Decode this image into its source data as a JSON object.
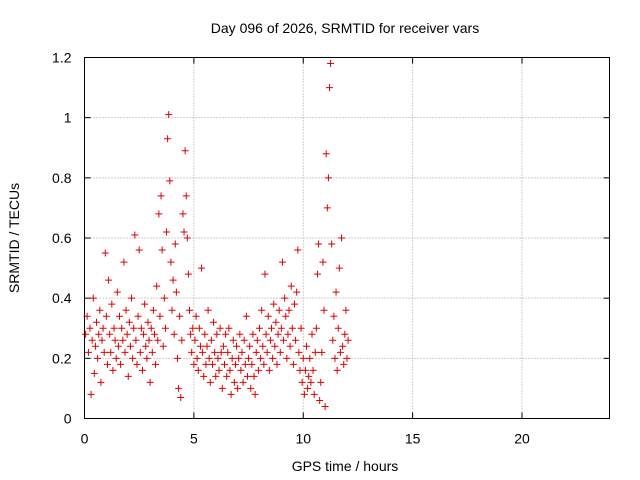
{
  "chart_data": {
    "type": "scatter",
    "title": "Day 096 of 2026, SRMTID for receiver vars",
    "xlabel": "GPS time / hours",
    "ylabel": "SRMTID / TECUs",
    "xlim": [
      0,
      24
    ],
    "ylim": [
      0,
      1.2
    ],
    "xticks": [
      0,
      5,
      10,
      15,
      20
    ],
    "yticks": [
      0,
      0.2,
      0.4,
      0.6,
      0.8,
      1,
      1.2
    ],
    "xtick_labels": [
      "0",
      "5",
      "10",
      "15",
      "20"
    ],
    "ytick_labels": [
      "0",
      "0.2",
      "0.4",
      "0.6",
      "0.8",
      "1",
      "1.2"
    ],
    "grid": true,
    "marker": "plus",
    "color": "#e00000",
    "series": [
      {
        "name": "SRMTID",
        "points": [
          [
            0.05,
            0.28
          ],
          [
            0.12,
            0.34
          ],
          [
            0.18,
            0.22
          ],
          [
            0.25,
            0.3
          ],
          [
            0.3,
            0.08
          ],
          [
            0.35,
            0.26
          ],
          [
            0.4,
            0.4
          ],
          [
            0.45,
            0.15
          ],
          [
            0.5,
            0.24
          ],
          [
            0.55,
            0.32
          ],
          [
            0.6,
            0.2
          ],
          [
            0.65,
            0.28
          ],
          [
            0.7,
            0.36
          ],
          [
            0.75,
            0.12
          ],
          [
            0.8,
            0.26
          ],
          [
            0.85,
            0.3
          ],
          [
            0.9,
            0.22
          ],
          [
            0.95,
            0.55
          ],
          [
            1.0,
            0.34
          ],
          [
            1.05,
            0.18
          ],
          [
            1.1,
            0.46
          ],
          [
            1.15,
            0.28
          ],
          [
            1.2,
            0.22
          ],
          [
            1.25,
            0.38
          ],
          [
            1.3,
            0.16
          ],
          [
            1.35,
            0.3
          ],
          [
            1.4,
            0.26
          ],
          [
            1.45,
            0.2
          ],
          [
            1.5,
            0.42
          ],
          [
            1.55,
            0.24
          ],
          [
            1.6,
            0.34
          ],
          [
            1.65,
            0.18
          ],
          [
            1.7,
            0.3
          ],
          [
            1.75,
            0.26
          ],
          [
            1.8,
            0.52
          ],
          [
            1.85,
            0.22
          ],
          [
            1.9,
            0.36
          ],
          [
            1.95,
            0.28
          ],
          [
            2.0,
            0.14
          ],
          [
            2.05,
            0.32
          ],
          [
            2.1,
            0.24
          ],
          [
            2.15,
            0.4
          ],
          [
            2.2,
            0.2
          ],
          [
            2.25,
            0.3
          ],
          [
            2.3,
            0.61
          ],
          [
            2.35,
            0.26
          ],
          [
            2.4,
            0.18
          ],
          [
            2.45,
            0.34
          ],
          [
            2.5,
            0.56
          ],
          [
            2.55,
            0.22
          ],
          [
            2.6,
            0.3
          ],
          [
            2.65,
            0.16
          ],
          [
            2.7,
            0.28
          ],
          [
            2.75,
            0.38
          ],
          [
            2.8,
            0.24
          ],
          [
            2.85,
            0.2
          ],
          [
            2.9,
            0.32
          ],
          [
            2.95,
            0.26
          ],
          [
            3.0,
            0.12
          ],
          [
            3.05,
            0.3
          ],
          [
            3.1,
            0.22
          ],
          [
            3.15,
            0.36
          ],
          [
            3.2,
            0.28
          ],
          [
            3.25,
            0.18
          ],
          [
            3.3,
            0.44
          ],
          [
            3.35,
            0.26
          ],
          [
            3.4,
            0.68
          ],
          [
            3.45,
            0.34
          ],
          [
            3.5,
            0.74
          ],
          [
            3.55,
            0.56
          ],
          [
            3.6,
            0.24
          ],
          [
            3.65,
            0.4
          ],
          [
            3.7,
            0.3
          ],
          [
            3.75,
            0.62
          ],
          [
            3.8,
            0.93
          ],
          [
            3.85,
            1.01
          ],
          [
            3.9,
            0.79
          ],
          [
            3.95,
            0.52
          ],
          [
            4.0,
            0.36
          ],
          [
            4.05,
            0.46
          ],
          [
            4.1,
            0.28
          ],
          [
            4.15,
            0.58
          ],
          [
            4.2,
            0.42
          ],
          [
            4.25,
            0.2
          ],
          [
            4.3,
            0.1
          ],
          [
            4.35,
            0.34
          ],
          [
            4.4,
            0.07
          ],
          [
            4.45,
            0.26
          ],
          [
            4.5,
            0.68
          ],
          [
            4.55,
            0.62
          ],
          [
            4.6,
            0.89
          ],
          [
            4.65,
            0.74
          ],
          [
            4.7,
            0.6
          ],
          [
            4.75,
            0.48
          ],
          [
            4.8,
            0.36
          ],
          [
            4.85,
            0.28
          ],
          [
            4.9,
            0.22
          ],
          [
            4.95,
            0.3
          ],
          [
            5.0,
            0.18
          ],
          [
            5.05,
            0.26
          ],
          [
            5.1,
            0.34
          ],
          [
            5.15,
            0.2
          ],
          [
            5.2,
            0.16
          ],
          [
            5.25,
            0.3
          ],
          [
            5.3,
            0.24
          ],
          [
            5.35,
            0.5
          ],
          [
            5.4,
            0.22
          ],
          [
            5.45,
            0.14
          ],
          [
            5.5,
            0.28
          ],
          [
            5.55,
            0.18
          ],
          [
            5.6,
            0.24
          ],
          [
            5.65,
            0.36
          ],
          [
            5.7,
            0.2
          ],
          [
            5.75,
            0.12
          ],
          [
            5.8,
            0.26
          ],
          [
            5.85,
            0.18
          ],
          [
            5.9,
            0.32
          ],
          [
            5.95,
            0.22
          ],
          [
            6.0,
            0.14
          ],
          [
            6.05,
            0.28
          ],
          [
            6.1,
            0.2
          ],
          [
            6.15,
            0.16
          ],
          [
            6.2,
            0.3
          ],
          [
            6.25,
            0.22
          ],
          [
            6.3,
            0.1
          ],
          [
            6.35,
            0.24
          ],
          [
            6.4,
            0.18
          ],
          [
            6.45,
            0.28
          ],
          [
            6.5,
            0.14
          ],
          [
            6.55,
            0.22
          ],
          [
            6.6,
            0.3
          ],
          [
            6.65,
            0.16
          ],
          [
            6.7,
            0.08
          ],
          [
            6.75,
            0.2
          ],
          [
            6.8,
            0.26
          ],
          [
            6.85,
            0.12
          ],
          [
            6.9,
            0.18
          ],
          [
            6.95,
            0.24
          ],
          [
            7.0,
            0.1
          ],
          [
            7.05,
            0.2
          ],
          [
            7.1,
            0.28
          ],
          [
            7.15,
            0.16
          ],
          [
            7.2,
            0.22
          ],
          [
            7.25,
            0.12
          ],
          [
            7.3,
            0.26
          ],
          [
            7.35,
            0.18
          ],
          [
            7.4,
            0.34
          ],
          [
            7.45,
            0.14
          ],
          [
            7.5,
            0.2
          ],
          [
            7.55,
            0.24
          ],
          [
            7.6,
            0.1
          ],
          [
            7.65,
            0.18
          ],
          [
            7.7,
            0.28
          ],
          [
            7.75,
            0.14
          ],
          [
            7.8,
            0.08
          ],
          [
            7.85,
            0.22
          ],
          [
            7.9,
            0.26
          ],
          [
            7.95,
            0.16
          ],
          [
            8.0,
            0.3
          ],
          [
            8.05,
            0.2
          ],
          [
            8.1,
            0.36
          ],
          [
            8.15,
            0.24
          ],
          [
            8.2,
            0.18
          ],
          [
            8.25,
            0.48
          ],
          [
            8.3,
            0.28
          ],
          [
            8.35,
            0.22
          ],
          [
            8.4,
            0.34
          ],
          [
            8.45,
            0.16
          ],
          [
            8.5,
            0.26
          ],
          [
            8.55,
            0.3
          ],
          [
            8.6,
            0.2
          ],
          [
            8.65,
            0.38
          ],
          [
            8.7,
            0.24
          ],
          [
            8.75,
            0.32
          ],
          [
            8.8,
            0.18
          ],
          [
            8.85,
            0.28
          ],
          [
            8.9,
            0.36
          ],
          [
            8.95,
            0.22
          ],
          [
            9.0,
            0.3
          ],
          [
            9.05,
            0.52
          ],
          [
            9.1,
            0.26
          ],
          [
            9.15,
            0.4
          ],
          [
            9.2,
            0.34
          ],
          [
            9.25,
            0.2
          ],
          [
            9.3,
            0.28
          ],
          [
            9.35,
            0.36
          ],
          [
            9.4,
            0.24
          ],
          [
            9.45,
            0.44
          ],
          [
            9.5,
            0.3
          ],
          [
            9.55,
            0.18
          ],
          [
            9.6,
            0.38
          ],
          [
            9.65,
            0.26
          ],
          [
            9.7,
            0.42
          ],
          [
            9.75,
            0.56
          ],
          [
            9.8,
            0.22
          ],
          [
            9.85,
            0.16
          ],
          [
            9.9,
            0.3
          ],
          [
            9.95,
            0.12
          ],
          [
            10.0,
            0.2
          ],
          [
            10.05,
            0.08
          ],
          [
            10.1,
            0.16
          ],
          [
            10.15,
            0.24
          ],
          [
            10.2,
            0.1
          ],
          [
            10.25,
            0.14
          ],
          [
            10.3,
            0.2
          ],
          [
            10.35,
            0.12
          ],
          [
            10.4,
            0.28
          ],
          [
            10.45,
            0.16
          ],
          [
            10.5,
            0.08
          ],
          [
            10.55,
            0.22
          ],
          [
            10.6,
            0.3
          ],
          [
            10.65,
            0.48
          ],
          [
            10.7,
            0.58
          ],
          [
            10.75,
            0.06
          ],
          [
            10.8,
            0.12
          ],
          [
            10.85,
            0.22
          ],
          [
            10.9,
            0.52
          ],
          [
            10.95,
            0.36
          ],
          [
            11.0,
            0.04
          ],
          [
            11.05,
            0.88
          ],
          [
            11.1,
            0.7
          ],
          [
            11.15,
            0.8
          ],
          [
            11.2,
            1.1
          ],
          [
            11.25,
            1.18
          ],
          [
            11.3,
            0.58
          ],
          [
            11.35,
            0.26
          ],
          [
            11.4,
            0.34
          ],
          [
            11.45,
            0.2
          ],
          [
            11.5,
            0.42
          ],
          [
            11.55,
            0.16
          ],
          [
            11.6,
            0.3
          ],
          [
            11.65,
            0.5
          ],
          [
            11.7,
            0.22
          ],
          [
            11.75,
            0.6
          ],
          [
            11.8,
            0.24
          ],
          [
            11.85,
            0.18
          ],
          [
            11.9,
            0.28
          ],
          [
            11.95,
            0.36
          ],
          [
            12.0,
            0.2
          ],
          [
            12.05,
            0.26
          ]
        ]
      }
    ]
  }
}
